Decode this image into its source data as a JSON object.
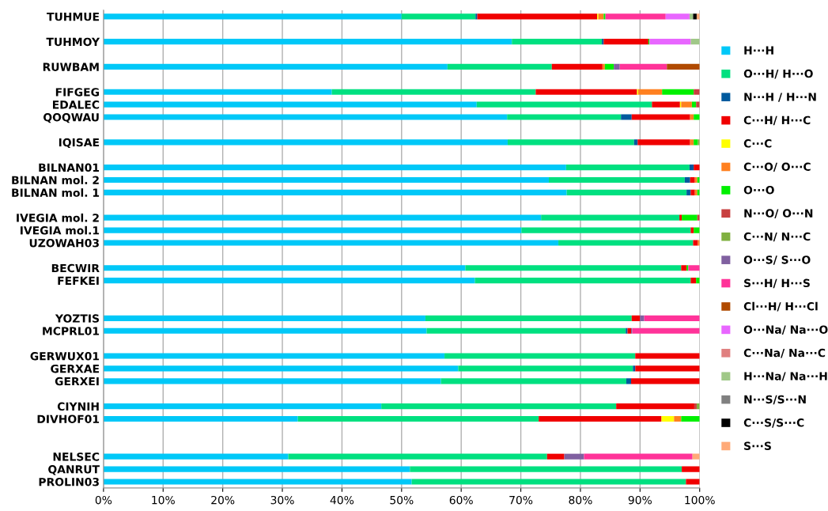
{
  "chart_data": {
    "type": "bar",
    "orientation": "horizontal",
    "stacked": true,
    "categories": [
      "TUHMUE",
      null,
      "TUHMOY",
      null,
      "RUWBAM",
      null,
      "FIFGEG",
      "EDALEC",
      "QOQWAU",
      null,
      "IQISAE",
      null,
      "BILNAN01",
      "BILNAN mol. 2",
      "BILNAN mol. 1",
      null,
      "IVEGIA mol. 2",
      "IVEGIA mol.1",
      "UZOWAH03",
      null,
      "BECWIR",
      "FEFKEI",
      null,
      null,
      "YOZTIS",
      "MCPRL01",
      null,
      "GERWUX01",
      "GERXAE",
      "GERXEI",
      null,
      "CIYNIH",
      "DIVHOF01",
      null,
      null,
      "NELSEC",
      "QANRUT",
      "PROLIN03"
    ],
    "xlim": [
      0,
      100
    ],
    "xticks": [
      {
        "value": 0,
        "label": "0%"
      },
      {
        "value": 10,
        "label": "10%"
      },
      {
        "value": 20,
        "label": "20%"
      },
      {
        "value": 30,
        "label": "30%"
      },
      {
        "value": 40,
        "label": "40%"
      },
      {
        "value": 50,
        "label": "50%"
      },
      {
        "value": 60,
        "label": "60%"
      },
      {
        "value": 70,
        "label": "70%"
      },
      {
        "value": 80,
        "label": "80%"
      },
      {
        "value": 90,
        "label": "90%"
      },
      {
        "value": 100,
        "label": "100%"
      }
    ],
    "grid": "x",
    "legend": "right",
    "series": [
      {
        "name": "H···H",
        "color": "#00c8f8",
        "values": [
          50.0,
          null,
          68.5,
          null,
          57.7,
          null,
          38.3,
          62.6,
          67.7,
          null,
          67.8,
          null,
          77.6,
          74.7,
          77.7,
          null,
          73.4,
          70.1,
          76.3,
          null,
          60.7,
          62.3,
          null,
          null,
          54.0,
          54.2,
          null,
          57.2,
          59.5,
          56.6,
          null,
          46.6,
          32.6,
          null,
          null,
          31.0,
          51.4,
          51.7
        ]
      },
      {
        "name": "O···H/ H···O",
        "color": "#00e080",
        "values": [
          12.4,
          null,
          15.1,
          null,
          17.5,
          null,
          34.2,
          29.4,
          19.1,
          null,
          21.2,
          null,
          20.7,
          22.8,
          20.1,
          null,
          23.2,
          28.4,
          22.6,
          null,
          36.2,
          36.2,
          null,
          null,
          34.6,
          33.4,
          null,
          32.0,
          29.3,
          31.1,
          null,
          39.4,
          40.4,
          null,
          null,
          43.4,
          45.6,
          46.0
        ]
      },
      {
        "name": "N···H / H···N",
        "color": "#005a9e",
        "values": [
          0.3,
          null,
          0.3,
          null,
          null,
          null,
          null,
          null,
          1.8,
          null,
          0.6,
          null,
          0.7,
          0.9,
          0.7,
          null,
          null,
          null,
          null,
          null,
          null,
          null,
          null,
          null,
          null,
          0.3,
          null,
          null,
          0.4,
          0.8,
          null,
          null,
          null,
          null,
          null,
          null,
          null,
          null
        ]
      },
      {
        "name": "C···H/ H···C",
        "color": "#f00000",
        "values": [
          20.1,
          null,
          7.5,
          null,
          8.5,
          null,
          17.0,
          4.7,
          9.8,
          null,
          8.8,
          null,
          1.0,
          0.8,
          0.7,
          null,
          0.4,
          0.5,
          0.8,
          null,
          0.9,
          0.9,
          null,
          null,
          1.4,
          0.6,
          null,
          10.8,
          10.8,
          11.5,
          null,
          13.1,
          20.6,
          null,
          null,
          2.9,
          3.0,
          2.3
        ]
      },
      {
        "name": "C···C",
        "color": "#ffff00",
        "values": [
          0.2,
          null,
          null,
          null,
          null,
          null,
          0.2,
          0.2,
          null,
          null,
          null,
          null,
          null,
          null,
          null,
          null,
          null,
          null,
          null,
          null,
          null,
          null,
          null,
          null,
          null,
          null,
          null,
          null,
          null,
          null,
          null,
          null,
          2.1,
          null,
          null,
          null,
          null,
          null
        ]
      },
      {
        "name": "C···O/ O···C",
        "color": "#ff8020",
        "values": [
          0.9,
          null,
          null,
          null,
          0.4,
          null,
          4.0,
          1.8,
          0.6,
          null,
          0.6,
          null,
          null,
          0.4,
          0.4,
          null,
          null,
          null,
          0.3,
          null,
          null,
          null,
          null,
          null,
          null,
          null,
          null,
          null,
          null,
          null,
          null,
          null,
          1.2,
          null,
          null,
          null,
          null,
          null
        ]
      },
      {
        "name": "O···O",
        "color": "#00f000",
        "values": [
          0.3,
          null,
          0.2,
          null,
          1.5,
          null,
          5.3,
          0.7,
          1.0,
          null,
          0.7,
          null,
          null,
          0.4,
          0.4,
          null,
          2.6,
          1.0,
          null,
          null,
          0.3,
          0.6,
          null,
          null,
          null,
          null,
          null,
          null,
          null,
          null,
          null,
          null,
          3.1,
          null,
          null,
          null,
          null,
          null
        ]
      },
      {
        "name": "N···O/ O···N",
        "color": "#c84040",
        "values": [
          null,
          null,
          null,
          null,
          null,
          null,
          1.0,
          0.6,
          null,
          null,
          null,
          null,
          null,
          null,
          null,
          null,
          0.4,
          null,
          null,
          null,
          null,
          null,
          null,
          null,
          null,
          null,
          null,
          null,
          null,
          null,
          null,
          0.4,
          null,
          null,
          null,
          null,
          null,
          null
        ]
      },
      {
        "name": "C···N/ N···C",
        "color": "#80b040",
        "values": [
          null,
          null,
          null,
          null,
          null,
          null,
          null,
          null,
          null,
          null,
          0.3,
          null,
          null,
          null,
          null,
          null,
          null,
          null,
          null,
          null,
          null,
          null,
          null,
          null,
          null,
          null,
          null,
          null,
          null,
          null,
          null,
          0.5,
          null,
          null,
          null,
          null,
          null,
          null
        ]
      },
      {
        "name": "O···S/ S···O",
        "color": "#8060a0",
        "values": [
          null,
          null,
          null,
          null,
          1.0,
          null,
          null,
          null,
          null,
          null,
          null,
          null,
          null,
          null,
          null,
          null,
          null,
          null,
          null,
          null,
          null,
          null,
          null,
          null,
          0.7,
          0.2,
          null,
          null,
          null,
          null,
          null,
          null,
          null,
          null,
          null,
          3.3,
          null,
          null
        ]
      },
      {
        "name": "S···H/ H···S",
        "color": "#ff3399",
        "values": [
          10.1,
          null,
          null,
          null,
          7.9,
          null,
          null,
          null,
          null,
          null,
          null,
          null,
          null,
          null,
          null,
          null,
          null,
          null,
          null,
          null,
          1.9,
          null,
          null,
          null,
          9.3,
          11.3,
          null,
          null,
          null,
          null,
          null,
          null,
          null,
          null,
          null,
          18.2,
          null,
          null
        ]
      },
      {
        "name": "Cl···H/ H···Cl",
        "color": "#b04a00",
        "values": [
          null,
          null,
          null,
          null,
          5.5,
          null,
          null,
          null,
          null,
          null,
          null,
          null,
          null,
          null,
          null,
          null,
          null,
          null,
          null,
          null,
          null,
          null,
          null,
          null,
          null,
          null,
          null,
          null,
          null,
          null,
          null,
          null,
          null,
          null,
          null,
          null,
          null,
          null
        ]
      },
      {
        "name": "O···Na/ Na···O",
        "color": "#e866ff",
        "values": [
          4.0,
          null,
          6.9,
          null,
          null,
          null,
          null,
          null,
          null,
          null,
          null,
          null,
          null,
          null,
          null,
          null,
          null,
          null,
          null,
          null,
          null,
          null,
          null,
          null,
          null,
          null,
          null,
          null,
          null,
          null,
          null,
          null,
          null,
          null,
          null,
          null,
          null,
          null
        ]
      },
      {
        "name": "C···Na/ Na···C",
        "color": "#e08080",
        "values": [
          null,
          null,
          null,
          null,
          null,
          null,
          null,
          null,
          null,
          null,
          null,
          null,
          null,
          null,
          null,
          null,
          null,
          null,
          null,
          null,
          null,
          null,
          null,
          null,
          null,
          null,
          null,
          null,
          null,
          null,
          null,
          null,
          null,
          null,
          null,
          null,
          null,
          null
        ]
      },
      {
        "name": "H···Na/ Na···H",
        "color": "#a0c888",
        "values": [
          0.6,
          null,
          1.5,
          null,
          null,
          null,
          null,
          null,
          null,
          null,
          null,
          null,
          null,
          null,
          null,
          null,
          null,
          null,
          null,
          null,
          null,
          null,
          null,
          null,
          null,
          null,
          null,
          null,
          null,
          null,
          null,
          null,
          null,
          null,
          null,
          null,
          null,
          null
        ]
      },
      {
        "name": "N···S/S···N",
        "color": "#808080",
        "values": [
          null,
          null,
          null,
          null,
          null,
          null,
          null,
          null,
          null,
          null,
          null,
          null,
          null,
          null,
          null,
          null,
          null,
          null,
          null,
          null,
          null,
          null,
          null,
          null,
          null,
          null,
          null,
          null,
          null,
          null,
          null,
          null,
          null,
          null,
          null,
          null,
          null,
          null
        ]
      },
      {
        "name": "C···S/S···C",
        "color": "#000000",
        "values": [
          0.6,
          null,
          null,
          null,
          null,
          null,
          null,
          null,
          null,
          null,
          null,
          null,
          null,
          null,
          null,
          null,
          null,
          null,
          null,
          null,
          null,
          null,
          null,
          null,
          null,
          null,
          null,
          null,
          null,
          null,
          null,
          null,
          null,
          null,
          null,
          null,
          null,
          null
        ]
      },
      {
        "name": "S···S",
        "color": "#ffaa78",
        "values": [
          0.5,
          null,
          null,
          null,
          null,
          null,
          null,
          null,
          null,
          null,
          null,
          null,
          null,
          null,
          null,
          null,
          null,
          null,
          null,
          null,
          null,
          null,
          null,
          null,
          null,
          null,
          null,
          null,
          null,
          null,
          null,
          null,
          null,
          null,
          null,
          1.2,
          null,
          null
        ]
      }
    ]
  }
}
